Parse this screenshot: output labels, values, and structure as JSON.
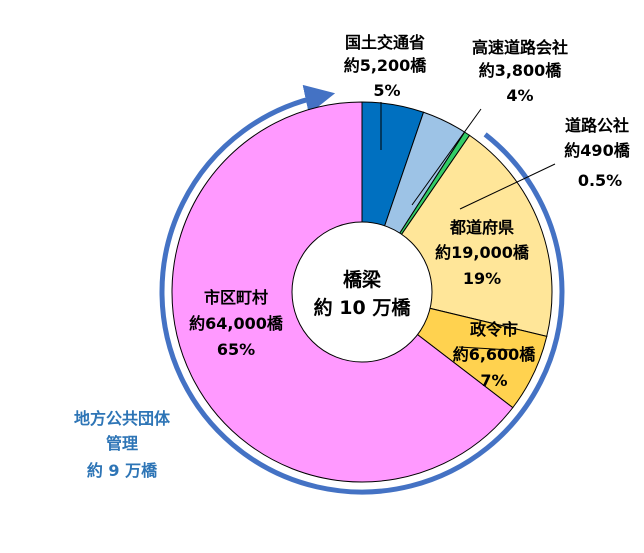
{
  "chart_data": {
    "type": "pie",
    "center_label": [
      "橋梁",
      "約 10 万橋"
    ],
    "slices": [
      {
        "label": "国土交通省",
        "count": "約5,200橋",
        "percent_text": "5%",
        "value": 5.2,
        "color": "#0070C0"
      },
      {
        "label": "高速道路会社",
        "count": "約3,800橋",
        "percent_text": "4%",
        "value": 3.8,
        "color": "#9DC3E6"
      },
      {
        "label": "道路公社",
        "count": "約490橋",
        "percent_text": "0.5%",
        "value": 0.49,
        "color": "#33CC66"
      },
      {
        "label": "都道府県",
        "count": "約19,000橋",
        "percent_text": "19%",
        "value": 19.0,
        "color": "#FFE699"
      },
      {
        "label": "政令市",
        "count": "約6,600橋",
        "percent_text": "7%",
        "value": 6.6,
        "color": "#FFD24F"
      },
      {
        "label": "市区町村",
        "count": "約64,000橋",
        "percent_text": "65%",
        "value": 64.0,
        "color": "#FF99FF"
      }
    ],
    "local_government": {
      "lines": [
        "地方公共団体",
        "管理",
        "約 9 万橋"
      ],
      "color": "#2E75B6"
    },
    "title": "",
    "legend": "none"
  }
}
